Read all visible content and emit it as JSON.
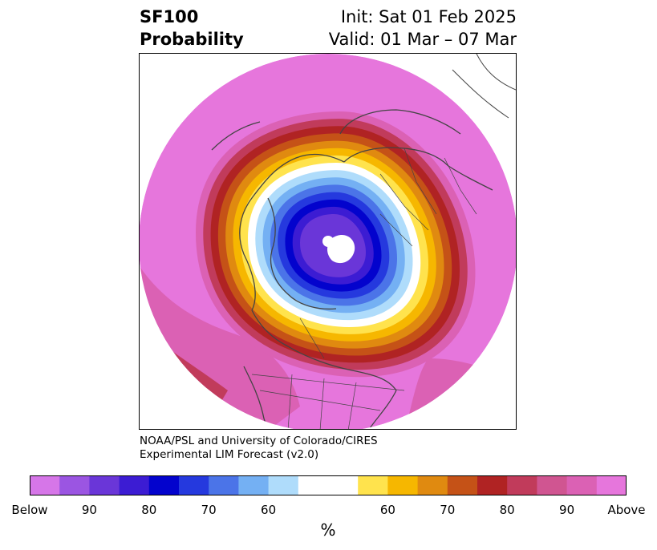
{
  "title": {
    "left_line1": "SF100",
    "left_line2": "Probability",
    "right_line1": "Init: Sat 01 Feb 2025",
    "right_line2": "Valid: 01 Mar – 07 Mar"
  },
  "credit": {
    "line1": "NOAA/PSL and University of Colorado/CIRES",
    "line2": "Experimental LIM Forecast (v2.0)"
  },
  "colorbar": {
    "unit": "%",
    "colors": [
      "#d676e8",
      "#9b55e2",
      "#6a36d8",
      "#3c1cd3",
      "#0303cd",
      "#2539de",
      "#4b74e8",
      "#74b0f3",
      "#afdcfb",
      "#ffffff",
      "#ffe34d",
      "#f6b700",
      "#e08a10",
      "#c55217",
      "#b02323",
      "#c13b5b",
      "#d05591",
      "#db61b4",
      "#e676dc"
    ],
    "weights": [
      1,
      1,
      1,
      1,
      1,
      1,
      1,
      1,
      1,
      2,
      1,
      1,
      1,
      1,
      1,
      1,
      1,
      1,
      1
    ],
    "tick_labels": [
      "Below",
      "90",
      "80",
      "70",
      "60",
      "60",
      "70",
      "80",
      "90",
      "Above"
    ]
  },
  "map": {
    "projection": "north-polar-stereographic",
    "background_color": "#e676dc",
    "anomaly_center": "Greenland / Baffin Bay (below-normal)",
    "rings": [
      "#db61b4",
      "#c13b5b",
      "#b02323",
      "#c55217",
      "#e08a10",
      "#f6b700",
      "#ffe34d",
      "#ffffff",
      "#afdcfb",
      "#74b0f3",
      "#4b74e8",
      "#2539de",
      "#0303cd",
      "#3c1cd3",
      "#6a36d8"
    ]
  }
}
